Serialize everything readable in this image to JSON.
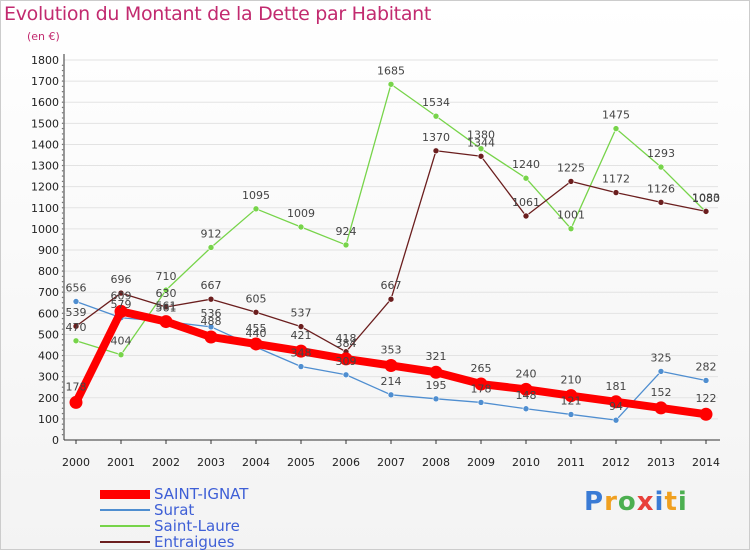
{
  "title": "Evolution du Montant de la Dette par Habitant",
  "unit": "(en €)",
  "brand": {
    "letters": [
      "P",
      "r",
      "o",
      "x",
      "i",
      "t",
      "i"
    ],
    "colors": [
      "#3a7bd5",
      "#f0a020",
      "#4caf50",
      "#e8403a",
      "#3a7bd5",
      "#f0a020",
      "#4caf50"
    ]
  },
  "chart_data": {
    "type": "line",
    "title": "Evolution du Montant de la Dette par Habitant",
    "ylabel": "(en €)",
    "ylim": [
      0,
      1800
    ],
    "yticks": [
      0,
      100,
      200,
      300,
      400,
      500,
      600,
      700,
      800,
      900,
      1000,
      1100,
      1200,
      1300,
      1400,
      1500,
      1600,
      1700,
      1800
    ],
    "x": [
      "2000",
      "2001",
      "2002",
      "2003",
      "2004",
      "2005",
      "2006",
      "2007",
      "2008",
      "2009",
      "2010",
      "2011",
      "2012",
      "2013",
      "2014"
    ],
    "series": [
      {
        "name": "SAINT-IGNAT",
        "color": "#ff0000",
        "width": 8,
        "values": [
          178,
          609,
          561,
          488,
          455,
          421,
          384,
          353,
          321,
          265,
          240,
          210,
          181,
          152,
          122
        ]
      },
      {
        "name": "Surat",
        "color": "#4f8ed0",
        "width": 1.3,
        "values": [
          656,
          579,
          561,
          536,
          440,
          348,
          309,
          214,
          195,
          178,
          148,
          121,
          94,
          325,
          282
        ]
      },
      {
        "name": "Saint-Laure",
        "color": "#77d44a",
        "width": 1.3,
        "values": [
          470,
          404,
          710,
          912,
          1095,
          1009,
          924,
          1685,
          1534,
          1380,
          1240,
          1001,
          1475,
          1293,
          1080
        ]
      },
      {
        "name": "Entraigues",
        "color": "#6b1e1e",
        "width": 1.3,
        "values": [
          539,
          696,
          630,
          667,
          605,
          537,
          418,
          667,
          1370,
          1344,
          1061,
          1225,
          1172,
          1126,
          1083
        ]
      }
    ]
  }
}
